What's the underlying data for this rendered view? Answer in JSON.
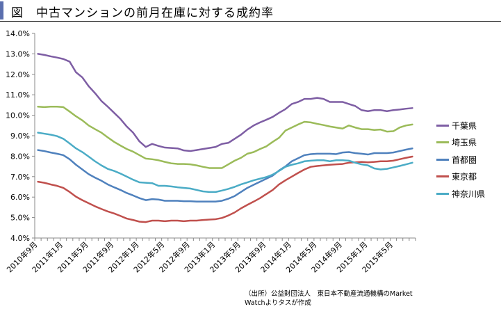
{
  "header": {
    "title": "図　中古マンションの前月在庫に対する成約率"
  },
  "source_note": "（出所）公益財団法人　東日本不動産流通機構のMarket Watchよりタスが作成",
  "chart_data": {
    "type": "line",
    "x": [
      "2010年9月",
      "2010年10月",
      "2010年11月",
      "2010年12月",
      "2011年1月",
      "2011年2月",
      "2011年3月",
      "2011年4月",
      "2011年5月",
      "2011年6月",
      "2011年7月",
      "2011年8月",
      "2011年9月",
      "2011年10月",
      "2011年11月",
      "2011年12月",
      "2012年1月",
      "2012年2月",
      "2012年3月",
      "2012年4月",
      "2012年5月",
      "2012年6月",
      "2012年7月",
      "2012年8月",
      "2012年9月",
      "2012年10月",
      "2012年11月",
      "2012年12月",
      "2013年1月",
      "2013年2月",
      "2013年3月",
      "2013年4月",
      "2013年5月",
      "2013年6月",
      "2013年7月",
      "2013年8月",
      "2013年9月",
      "2013年10月",
      "2013年11月",
      "2013年12月",
      "2014年1月",
      "2014年2月",
      "2014年3月",
      "2014年4月",
      "2014年5月",
      "2014年6月",
      "2014年7月",
      "2014年8月",
      "2014年9月",
      "2014年10月",
      "2014年11月",
      "2014年12月",
      "2015年1月",
      "2015年2月",
      "2015年3月",
      "2015年4月",
      "2015年5月",
      "2015年6月",
      "2015年7月",
      "2015年8月"
    ],
    "x_tick_labels": [
      "2010年9月",
      "2011年1月",
      "2011年5月",
      "2011年9月",
      "2012年1月",
      "2012年5月",
      "2012年9月",
      "2013年1月",
      "2013年5月",
      "2013年9月",
      "2014年1月",
      "2014年5月",
      "2014年9月",
      "2015年1月",
      "2015年5月"
    ],
    "ylim": [
      4.0,
      14.0
    ],
    "y_ticks": [
      "4.0%",
      "5.0%",
      "6.0%",
      "7.0%",
      "8.0%",
      "9.0%",
      "10.0%",
      "11.0%",
      "12.0%",
      "13.0%",
      "14.0%"
    ],
    "grid": false,
    "legend_position": "right",
    "series": [
      {
        "name": "千葉県",
        "color": "#7e5ea4",
        "values": [
          13.0,
          12.95,
          12.88,
          12.82,
          12.75,
          12.62,
          12.1,
          11.85,
          11.42,
          11.08,
          10.7,
          10.42,
          10.12,
          9.82,
          9.45,
          9.15,
          8.72,
          8.45,
          8.6,
          8.5,
          8.42,
          8.4,
          8.38,
          8.28,
          8.25,
          8.3,
          8.35,
          8.4,
          8.45,
          8.6,
          8.65,
          8.85,
          9.05,
          9.3,
          9.5,
          9.65,
          9.78,
          9.92,
          10.12,
          10.3,
          10.55,
          10.65,
          10.8,
          10.8,
          10.85,
          10.8,
          10.65,
          10.65,
          10.65,
          10.55,
          10.45,
          10.25,
          10.2,
          10.25,
          10.25,
          10.2,
          10.25,
          10.28,
          10.32,
          10.35
        ]
      },
      {
        "name": "埼玉県",
        "color": "#9bbb59",
        "values": [
          10.42,
          10.4,
          10.42,
          10.42,
          10.4,
          10.18,
          9.95,
          9.75,
          9.5,
          9.32,
          9.15,
          8.92,
          8.7,
          8.52,
          8.35,
          8.22,
          8.05,
          7.88,
          7.85,
          7.8,
          7.72,
          7.65,
          7.62,
          7.62,
          7.6,
          7.55,
          7.48,
          7.42,
          7.42,
          7.42,
          7.6,
          7.78,
          7.92,
          8.12,
          8.2,
          8.35,
          8.48,
          8.7,
          8.9,
          9.25,
          9.4,
          9.55,
          9.68,
          9.65,
          9.58,
          9.52,
          9.45,
          9.4,
          9.35,
          9.5,
          9.4,
          9.32,
          9.32,
          9.28,
          9.3,
          9.2,
          9.22,
          9.4,
          9.5,
          9.55
        ]
      },
      {
        "name": "首都圏",
        "color": "#4f81bd",
        "values": [
          8.3,
          8.25,
          8.18,
          8.12,
          8.05,
          7.85,
          7.58,
          7.35,
          7.12,
          6.95,
          6.8,
          6.62,
          6.48,
          6.35,
          6.2,
          6.08,
          5.95,
          5.85,
          5.9,
          5.88,
          5.82,
          5.82,
          5.82,
          5.8,
          5.8,
          5.78,
          5.78,
          5.78,
          5.78,
          5.82,
          5.92,
          6.05,
          6.25,
          6.45,
          6.6,
          6.75,
          6.9,
          7.05,
          7.3,
          7.5,
          7.75,
          7.9,
          8.05,
          8.1,
          8.12,
          8.12,
          8.12,
          8.1,
          8.18,
          8.2,
          8.15,
          8.12,
          8.08,
          8.15,
          8.15,
          8.15,
          8.18,
          8.25,
          8.32,
          8.38
        ]
      },
      {
        "name": "東京都",
        "color": "#c0504d",
        "values": [
          6.75,
          6.7,
          6.62,
          6.55,
          6.45,
          6.25,
          6.02,
          5.85,
          5.7,
          5.55,
          5.42,
          5.3,
          5.2,
          5.08,
          4.95,
          4.88,
          4.8,
          4.78,
          4.85,
          4.85,
          4.82,
          4.85,
          4.85,
          4.82,
          4.85,
          4.85,
          4.88,
          4.9,
          4.92,
          4.98,
          5.1,
          5.25,
          5.45,
          5.62,
          5.78,
          5.95,
          6.15,
          6.35,
          6.62,
          6.82,
          7.0,
          7.18,
          7.35,
          7.48,
          7.52,
          7.55,
          7.58,
          7.6,
          7.62,
          7.68,
          7.7,
          7.72,
          7.7,
          7.72,
          7.75,
          7.75,
          7.78,
          7.85,
          7.92,
          7.98
        ]
      },
      {
        "name": "神奈川県",
        "color": "#4bacc6",
        "values": [
          9.15,
          9.1,
          9.05,
          8.98,
          8.85,
          8.62,
          8.38,
          8.2,
          7.98,
          7.75,
          7.55,
          7.38,
          7.28,
          7.15,
          7.0,
          6.85,
          6.72,
          6.7,
          6.68,
          6.55,
          6.55,
          6.52,
          6.48,
          6.45,
          6.42,
          6.35,
          6.28,
          6.25,
          6.25,
          6.32,
          6.4,
          6.5,
          6.62,
          6.72,
          6.82,
          6.9,
          6.98,
          7.1,
          7.28,
          7.48,
          7.58,
          7.65,
          7.75,
          7.78,
          7.8,
          7.8,
          7.75,
          7.8,
          7.8,
          7.78,
          7.68,
          7.6,
          7.55,
          7.4,
          7.35,
          7.38,
          7.45,
          7.52,
          7.6,
          7.68
        ]
      }
    ]
  }
}
